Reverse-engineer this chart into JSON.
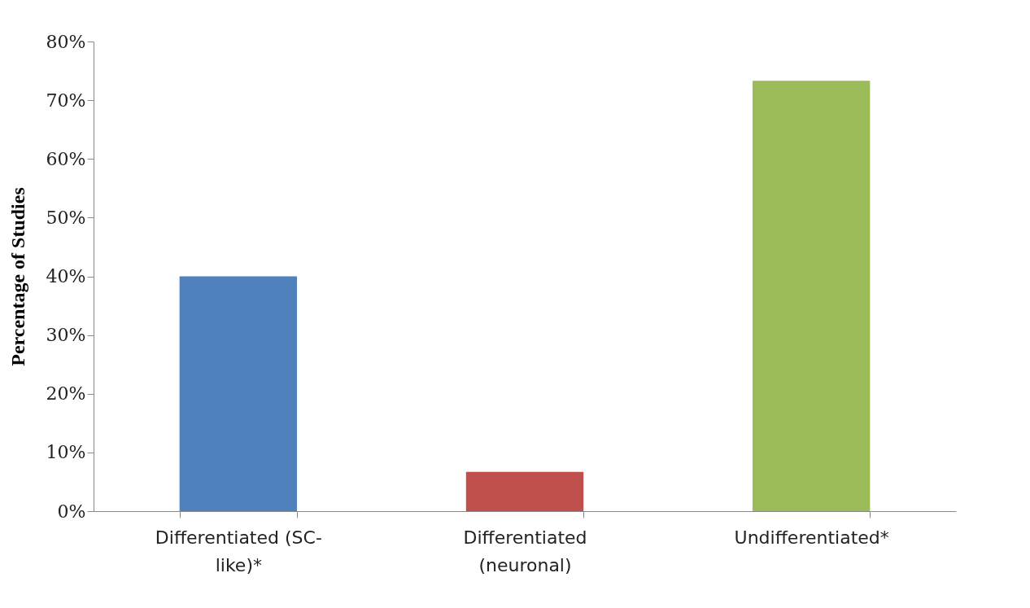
{
  "chart_data": {
    "type": "bar",
    "ylabel": "Percentage of Studies",
    "categories": [
      "Differentiated (SC-like)*",
      "Differentiated (neuronal)",
      "Undifferentiated*"
    ],
    "values": [
      40,
      6.7,
      73.3
    ],
    "colors": [
      "#4f81bd",
      "#c0504d",
      "#9bbb59"
    ],
    "ylim": [
      0,
      80
    ],
    "yticks": [
      {
        "value": 0,
        "label": "0%"
      },
      {
        "value": 10,
        "label": "10%"
      },
      {
        "value": 20,
        "label": "20%"
      },
      {
        "value": 30,
        "label": "30%"
      },
      {
        "value": 40,
        "label": "40%"
      },
      {
        "value": 50,
        "label": "50%"
      },
      {
        "value": 60,
        "label": "60%"
      },
      {
        "value": 70,
        "label": "70%"
      },
      {
        "value": 80,
        "label": "80%"
      }
    ],
    "grid": false
  }
}
